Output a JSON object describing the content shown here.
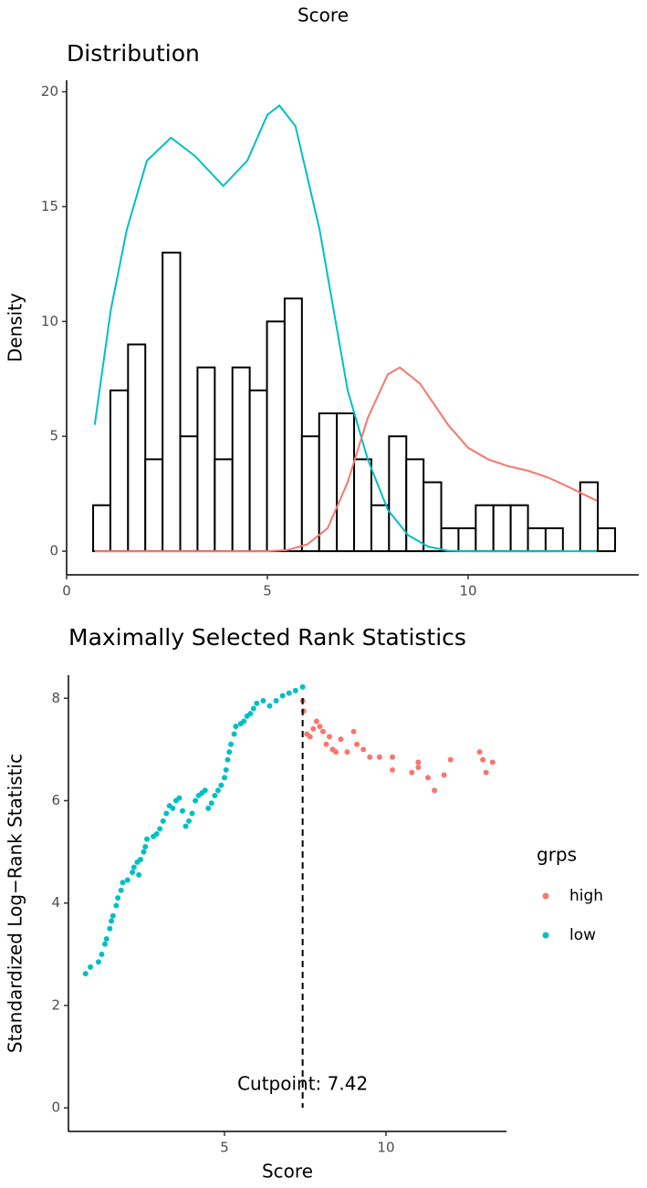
{
  "title": "Score",
  "chart_data": [
    {
      "type": "histogram",
      "title": "Distribution",
      "ylabel": "Density",
      "bins": [
        0.66,
        1.09,
        1.53,
        1.96,
        2.39,
        2.83,
        3.26,
        3.69,
        4.13,
        4.56,
        4.99,
        5.43,
        5.86,
        6.29,
        6.73,
        7.16,
        7.59,
        8.03,
        8.46,
        8.89,
        9.33,
        9.76,
        10.19,
        10.63,
        11.06,
        11.49,
        11.93,
        12.36,
        12.79,
        13.23,
        13.66
      ],
      "values": [
        2,
        7,
        9,
        4,
        13,
        5,
        8,
        4,
        8,
        7,
        10,
        11,
        5,
        6,
        6,
        4,
        2,
        5,
        4,
        3,
        1,
        1,
        2,
        2,
        2,
        1,
        1,
        0,
        3,
        1
      ],
      "color": "#ffffff",
      "edgecolor": "#000000",
      "curves": [
        {
          "color": "#00BFC4",
          "x": [
            0.7,
            1.1,
            1.5,
            2.0,
            2.6,
            3.2,
            3.9,
            4.5,
            5.0,
            5.3,
            5.7,
            6.3,
            7.0,
            7.5,
            8.0,
            8.5,
            9.0,
            9.5,
            10.0,
            13.2
          ],
          "values": [
            5.5,
            10.5,
            14,
            17,
            18,
            17.2,
            15.9,
            17,
            19,
            19.4,
            18.5,
            14,
            7,
            4,
            1.8,
            0.7,
            0.2,
            0.02,
            0,
            0
          ]
        },
        {
          "color": "#F8766D",
          "x": [
            0.7,
            5.0,
            5.5,
            6.0,
            6.5,
            7.0,
            7.5,
            8.0,
            8.3,
            8.8,
            9.5,
            10.0,
            10.5,
            11.0,
            11.5,
            12.0,
            12.5,
            13.2
          ],
          "values": [
            0,
            0,
            0.05,
            0.3,
            1,
            3,
            5.8,
            7.7,
            8,
            7.3,
            5.5,
            4.5,
            4,
            3.7,
            3.5,
            3.2,
            2.8,
            2.2
          ]
        }
      ],
      "xlim": [
        0,
        14.25
      ],
      "ylim": [
        -1.03,
        20.5
      ],
      "xticks": [
        0,
        5,
        10
      ],
      "yticks": [
        0,
        5,
        10,
        15,
        20
      ]
    },
    {
      "type": "scatter",
      "title": "Maximally Selected Rank Statistics",
      "xlabel": "Score",
      "ylabel": "Standardized Log−Rank Statistic",
      "legend_title": "grps",
      "legend": "right",
      "cutpoint": 7.42,
      "annotation": "Cutpoint: 7.42",
      "series": [
        {
          "name": "high",
          "color": "#F8766D",
          "x": [
            7.42,
            7.45,
            7.55,
            7.65,
            7.75,
            7.85,
            7.95,
            8.05,
            8.15,
            8.25,
            8.35,
            8.45,
            8.6,
            8.8,
            9.0,
            9.1,
            9.3,
            9.5,
            9.8,
            10.2,
            10.2,
            10.8,
            11.0,
            11.0,
            11.3,
            11.5,
            11.8,
            12.0,
            12.9,
            13.0,
            13.1,
            13.3
          ],
          "values": [
            7.95,
            7.75,
            7.3,
            7.25,
            7.4,
            7.55,
            7.45,
            7.35,
            7.1,
            7.25,
            7.0,
            6.95,
            7.2,
            6.95,
            7.35,
            7.1,
            7.0,
            6.85,
            6.85,
            6.6,
            6.85,
            6.55,
            6.65,
            6.75,
            6.45,
            6.2,
            6.5,
            6.8,
            6.95,
            6.8,
            6.55,
            6.75
          ]
        },
        {
          "name": "low",
          "color": "#00BFC4",
          "x": [
            0.7,
            0.85,
            1.1,
            1.2,
            1.3,
            1.35,
            1.45,
            1.5,
            1.55,
            1.65,
            1.7,
            1.8,
            1.85,
            2.0,
            2.15,
            2.2,
            2.3,
            2.35,
            2.4,
            2.5,
            2.55,
            2.6,
            2.8,
            2.9,
            3.0,
            3.1,
            3.2,
            3.3,
            3.4,
            3.5,
            3.6,
            3.7,
            3.8,
            3.9,
            4.0,
            4.1,
            4.2,
            4.3,
            4.4,
            4.5,
            4.6,
            4.7,
            4.8,
            4.9,
            5.0,
            5.05,
            5.1,
            5.15,
            5.2,
            5.3,
            5.35,
            5.5,
            5.6,
            5.7,
            5.8,
            5.9,
            6.0,
            6.2,
            6.4,
            6.6,
            6.8,
            7.0,
            7.2,
            7.42
          ],
          "values": [
            2.62,
            2.75,
            2.85,
            3.0,
            3.2,
            3.3,
            3.5,
            3.65,
            3.75,
            3.95,
            4.1,
            4.25,
            4.4,
            4.45,
            4.6,
            4.7,
            4.8,
            4.55,
            4.85,
            5.0,
            5.1,
            5.25,
            5.3,
            5.35,
            5.45,
            5.6,
            5.75,
            5.9,
            5.85,
            6.0,
            6.05,
            5.8,
            5.5,
            5.6,
            5.75,
            6.0,
            6.1,
            6.15,
            6.2,
            5.85,
            5.95,
            6.1,
            6.2,
            6.3,
            6.45,
            6.6,
            6.8,
            6.95,
            7.1,
            7.3,
            7.45,
            7.5,
            7.55,
            7.65,
            7.7,
            7.8,
            7.9,
            7.95,
            7.85,
            7.95,
            8.05,
            8.1,
            8.15,
            8.22
          ]
        }
      ],
      "xlim": [
        0.17,
        13.73
      ],
      "ylim": [
        -0.46,
        8.45
      ],
      "xticks": [
        5,
        10
      ],
      "yticks": [
        0,
        2,
        4,
        6,
        8
      ]
    }
  ]
}
